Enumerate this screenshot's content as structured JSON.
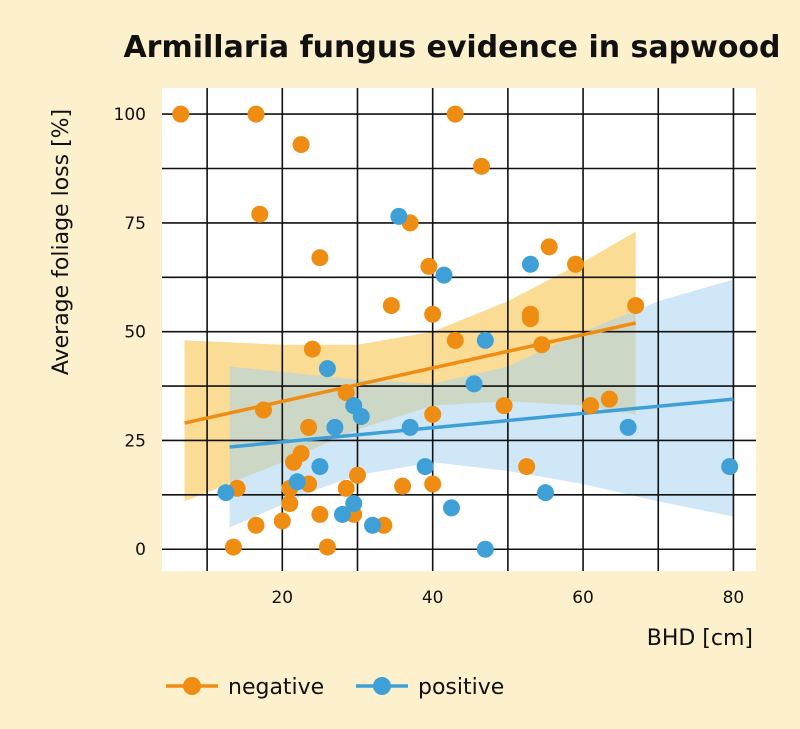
{
  "chart_data": {
    "type": "scatter",
    "title": "Armillaria fungus evidence in sapwood",
    "xlabel": "BHD [cm]",
    "ylabel": "Average foliage loss [%]",
    "xlim": [
      4,
      83
    ],
    "ylim": [
      -5,
      106
    ],
    "xticks": [
      20,
      40,
      60,
      80
    ],
    "yticks": [
      0,
      25,
      50,
      75,
      100
    ],
    "grid": true,
    "legend_position": "bottom",
    "series": [
      {
        "name": "negative",
        "color": "#ef8c12",
        "band_color": "#f6c44e",
        "points": [
          [
            6.5,
            100
          ],
          [
            16.5,
            100
          ],
          [
            17,
            77
          ],
          [
            22.5,
            93
          ],
          [
            25,
            67
          ],
          [
            37,
            75
          ],
          [
            43,
            100
          ],
          [
            46.5,
            88
          ],
          [
            17.5,
            32
          ],
          [
            14,
            14
          ],
          [
            16.5,
            5.5
          ],
          [
            20,
            6.5
          ],
          [
            21,
            14
          ],
          [
            21,
            10.5
          ],
          [
            21.5,
            20
          ],
          [
            22.5,
            22
          ],
          [
            23.5,
            28
          ],
          [
            23.5,
            15
          ],
          [
            24,
            46
          ],
          [
            25,
            8
          ],
          [
            26,
            0.5
          ],
          [
            28.5,
            36
          ],
          [
            28.5,
            14
          ],
          [
            29.5,
            8
          ],
          [
            30,
            17
          ],
          [
            13.5,
            0.5
          ],
          [
            33.5,
            5.5
          ],
          [
            34.5,
            56
          ],
          [
            36,
            14.5
          ],
          [
            39.5,
            65
          ],
          [
            40,
            54
          ],
          [
            40,
            31
          ],
          [
            40,
            15
          ],
          [
            43,
            48
          ],
          [
            49.5,
            33
          ],
          [
            52.5,
            19
          ],
          [
            53,
            54
          ],
          [
            53,
            53
          ],
          [
            54.5,
            47
          ],
          [
            55.5,
            69.5
          ],
          [
            59,
            65.5
          ],
          [
            61,
            33
          ],
          [
            63.5,
            34.5
          ],
          [
            67,
            56
          ]
        ],
        "trend": [
          [
            7,
            29
          ],
          [
            67,
            52
          ]
        ],
        "band_upper": [
          [
            7,
            48
          ],
          [
            20,
            47
          ],
          [
            30,
            47
          ],
          [
            40,
            50
          ],
          [
            50,
            57
          ],
          [
            60,
            66
          ],
          [
            67,
            73
          ]
        ],
        "band_lower": [
          [
            7,
            11
          ],
          [
            20,
            20
          ],
          [
            30,
            27.5
          ],
          [
            40,
            33
          ],
          [
            50,
            34
          ],
          [
            60,
            33
          ],
          [
            67,
            31
          ]
        ]
      },
      {
        "name": "positive",
        "color": "#3fa0d8",
        "band_color": "#a8d4ee",
        "points": [
          [
            35.5,
            76.5
          ],
          [
            41.5,
            63
          ],
          [
            53,
            65.5
          ],
          [
            26,
            41.5
          ],
          [
            47,
            48
          ],
          [
            45.5,
            38
          ],
          [
            29.5,
            33
          ],
          [
            30.5,
            30.5
          ],
          [
            27,
            28
          ],
          [
            37,
            28
          ],
          [
            25,
            19
          ],
          [
            22,
            15.5
          ],
          [
            12.5,
            13
          ],
          [
            28,
            8
          ],
          [
            29.5,
            10.5
          ],
          [
            32,
            5.5
          ],
          [
            39,
            19
          ],
          [
            42.5,
            9.5
          ],
          [
            47,
            0
          ],
          [
            55,
            13
          ],
          [
            66,
            28
          ],
          [
            79.5,
            19
          ]
        ],
        "trend": [
          [
            13,
            23.5
          ],
          [
            80,
            34.5
          ]
        ],
        "band_upper": [
          [
            13,
            42
          ],
          [
            30,
            39
          ],
          [
            40,
            38
          ],
          [
            50,
            42
          ],
          [
            60,
            50
          ],
          [
            70,
            57
          ],
          [
            80,
            62
          ]
        ],
        "band_lower": [
          [
            13,
            5
          ],
          [
            25,
            14
          ],
          [
            30,
            17
          ],
          [
            40,
            20
          ],
          [
            50,
            18
          ],
          [
            60,
            15
          ],
          [
            70,
            11
          ],
          [
            80,
            7.5
          ]
        ]
      }
    ]
  }
}
